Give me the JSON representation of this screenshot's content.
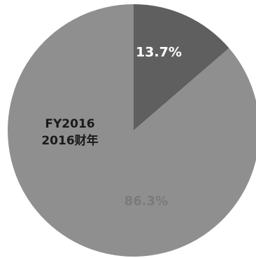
{
  "chart_data": {
    "type": "pie",
    "title": "",
    "center_label": {
      "line1": "FY2016",
      "line2": "2016财年"
    },
    "slices": [
      {
        "label": "13.7%",
        "value": 13.7,
        "color": "#5f5f5f",
        "label_color": "#ffffff"
      },
      {
        "label": "86.3%",
        "value": 86.3,
        "color": "#8f8f8f",
        "label_color": "#7a7a7a"
      }
    ],
    "start_angle_deg": 0,
    "direction": "clockwise",
    "legend": "none",
    "grid": false
  }
}
